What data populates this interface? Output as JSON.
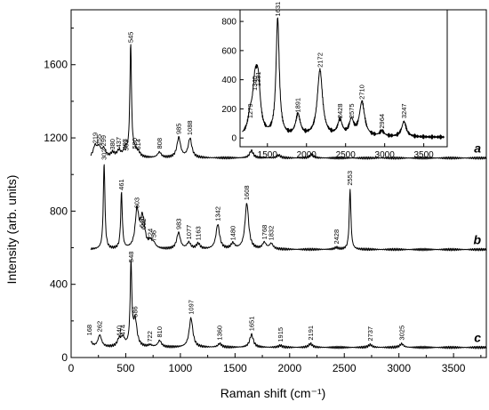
{
  "chart_data": [
    {
      "type": "line",
      "xlabel": "Raman shift (cm⁻¹)",
      "ylabel": "Intensity (arb. units)",
      "xlim": [
        0,
        3800
      ],
      "ylim": [
        0,
        1900
      ],
      "x_ticks": [
        0,
        500,
        1000,
        1500,
        2000,
        2500,
        3000,
        3500
      ],
      "y_ticks": [
        0,
        400,
        800,
        1200,
        1600
      ],
      "series": [
        {
          "name": "a",
          "baseline": 1090,
          "x_end": 3800,
          "peaks": [
            {
              "label": "219",
              "x": 219,
              "y": 1150
            },
            {
              "label": "255",
              "x": 255,
              "y": 1140
            },
            {
              "label": "299",
              "x": 299,
              "y": 1135
            },
            {
              "label": "380",
              "x": 380,
              "y": 1115
            },
            {
              "label": "437",
              "x": 437,
              "y": 1125
            },
            {
              "label": "493",
              "x": 493,
              "y": 1115
            },
            {
              "label": "503",
              "x": 503,
              "y": 1110
            },
            {
              "label": "545",
              "x": 545,
              "y": 1700
            },
            {
              "label": "580",
              "x": 580,
              "y": 1120
            },
            {
              "label": "614",
              "x": 614,
              "y": 1115
            },
            {
              "label": "808",
              "x": 808,
              "y": 1120
            },
            {
              "label": "985",
              "x": 985,
              "y": 1200
            },
            {
              "label": "1088",
              "x": 1088,
              "y": 1195
            }
          ],
          "extra_bands": [
            {
              "x": 1650,
              "y": 1130
            },
            {
              "x": 1900,
              "y": 1105
            },
            {
              "x": 2200,
              "y": 1110
            }
          ]
        },
        {
          "name": "b",
          "baseline": 590,
          "x_end": 3800,
          "peaks": [
            {
              "label": "302",
              "x": 302,
              "y": 1060
            },
            {
              "label": "461",
              "x": 461,
              "y": 895
            },
            {
              "label": "603",
              "x": 603,
              "y": 795
            },
            {
              "label": "646",
              "x": 646,
              "y": 690
            },
            {
              "label": "662",
              "x": 662,
              "y": 680
            },
            {
              "label": "724",
              "x": 724,
              "y": 625
            },
            {
              "label": "756",
              "x": 756,
              "y": 615
            },
            {
              "label": "983",
              "x": 983,
              "y": 680
            },
            {
              "label": "1077",
              "x": 1077,
              "y": 625
            },
            {
              "label": "1163",
              "x": 1163,
              "y": 620
            },
            {
              "label": "1342",
              "x": 1342,
              "y": 725
            },
            {
              "label": "1480",
              "x": 1480,
              "y": 620
            },
            {
              "label": "1608",
              "x": 1608,
              "y": 840
            },
            {
              "label": "1768",
              "x": 1768,
              "y": 625
            },
            {
              "label": "1832",
              "x": 1832,
              "y": 620
            },
            {
              "label": "2428",
              "x": 2428,
              "y": 600
            },
            {
              "label": "2553",
              "x": 2553,
              "y": 920
            }
          ]
        },
        {
          "name": "c",
          "baseline": 55,
          "x_end": 3800,
          "peaks": [
            {
              "label": "168",
              "x": 168,
              "y": 100
            },
            {
              "label": "262",
              "x": 262,
              "y": 120
            },
            {
              "label": "440",
              "x": 440,
              "y": 95
            },
            {
              "label": "474",
              "x": 474,
              "y": 100
            },
            {
              "label": "548",
              "x": 548,
              "y": 500
            },
            {
              "label": "586",
              "x": 586,
              "y": 200
            },
            {
              "label": "722",
              "x": 722,
              "y": 65
            },
            {
              "label": "810",
              "x": 810,
              "y": 90
            },
            {
              "label": "1097",
              "x": 1097,
              "y": 215
            },
            {
              "label": "1360",
              "x": 1360,
              "y": 75
            },
            {
              "label": "1651",
              "x": 1651,
              "y": 125
            },
            {
              "label": "1915",
              "x": 1915,
              "y": 65
            },
            {
              "label": "2191",
              "x": 2191,
              "y": 75
            },
            {
              "label": "2737",
              "x": 2737,
              "y": 70
            },
            {
              "label": "3025",
              "x": 3025,
              "y": 75
            }
          ]
        }
      ]
    },
    {
      "type": "line",
      "xlim": [
        1150,
        3800
      ],
      "ylim": [
        -60,
        880
      ],
      "x_ticks": [
        1500,
        2000,
        2500,
        3000,
        3500
      ],
      "y_ticks": [
        0,
        200,
        400,
        600,
        800
      ],
      "baseline": 5,
      "peaks": [
        {
          "label": "1279",
          "x": 1279,
          "y": 110
        },
        {
          "label": "1340",
          "x": 1340,
          "y": 300
        },
        {
          "label": "1381",
          "x": 1381,
          "y": 330
        },
        {
          "label": "1631",
          "x": 1631,
          "y": 810
        },
        {
          "label": "1891",
          "x": 1891,
          "y": 150
        },
        {
          "label": "2172",
          "x": 2172,
          "y": 460
        },
        {
          "label": "2428",
          "x": 2428,
          "y": 110
        },
        {
          "label": "2575",
          "x": 2575,
          "y": 110
        },
        {
          "label": "2710",
          "x": 2710,
          "y": 240
        },
        {
          "label": "2964",
          "x": 2964,
          "y": 40
        },
        {
          "label": "3247",
          "x": 3247,
          "y": 110
        }
      ]
    }
  ]
}
